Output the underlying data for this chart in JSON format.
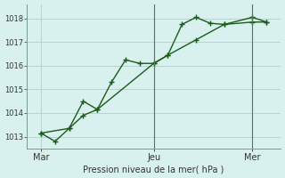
{
  "xlabel": "Pression niveau de la mer( hPa )",
  "bg_color": "#d8f0ee",
  "line_color": "#1a5c1a",
  "grid_color": "#b8d4d0",
  "ylim": [
    1012.5,
    1018.6
  ],
  "yticks": [
    1013,
    1014,
    1015,
    1016,
    1017,
    1018
  ],
  "xlim": [
    0,
    18
  ],
  "xtick_positions": [
    1,
    9,
    16
  ],
  "xtick_labels": [
    "Mar",
    "Jeu",
    "Mer"
  ],
  "vline_positions": [
    9,
    16
  ],
  "series1_x": [
    1,
    2,
    3,
    4,
    5,
    6,
    7,
    8,
    9,
    10,
    11,
    12,
    13,
    14,
    16,
    17
  ],
  "series1_y": [
    1013.15,
    1012.8,
    1013.35,
    1014.5,
    1014.15,
    1015.3,
    1016.25,
    1016.1,
    1016.1,
    1016.45,
    1017.75,
    1018.05,
    1017.8,
    1017.75,
    1017.85,
    1017.85
  ],
  "series2_x": [
    1,
    3,
    4,
    5,
    9,
    10,
    12,
    14,
    16,
    17
  ],
  "series2_y": [
    1013.15,
    1013.35,
    1013.9,
    1014.15,
    1016.1,
    1016.45,
    1017.1,
    1017.75,
    1018.05,
    1017.85
  ],
  "marker_size": 3.0,
  "linewidth": 1.0
}
